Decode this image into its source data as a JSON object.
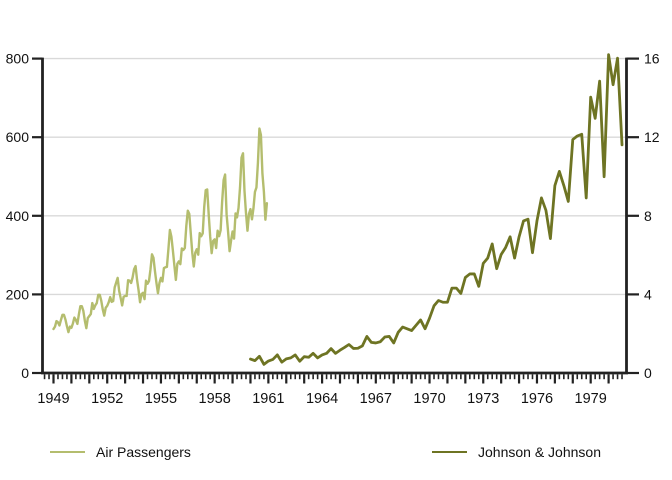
{
  "chart_data": {
    "type": "line",
    "title": "",
    "xlabel": "",
    "ylabel_left": "",
    "ylabel_right": "",
    "grid": "horizontal",
    "legend_position": "bottom",
    "background_color": "#ffffff",
    "gridline_color": "#d9d9d9",
    "spine_color": "#222222",
    "text_color": "#111111",
    "x_axis": {
      "labeled_tick_years": [
        1949,
        1952,
        1955,
        1958,
        1961,
        1964,
        1967,
        1970,
        1973,
        1976,
        1979
      ],
      "year_tick_start": 1949,
      "year_tick_end": 1980,
      "minor_tick_interval_years": 0.25,
      "domain_start": 1948.39,
      "domain_end": 1981.0
    },
    "y_left": {
      "ticks": [
        0,
        200,
        400,
        600,
        800
      ],
      "min": 0,
      "max": 800
    },
    "y_right": {
      "ticks": [
        0,
        4,
        8,
        12,
        16
      ],
      "min": 0,
      "max": 16
    },
    "series": [
      {
        "name": "Air Passengers",
        "axis": "left",
        "color": "#b4bd6e",
        "stroke_width": 2.4,
        "x_start": 1949.0,
        "x_step": 0.0833333,
        "values": [
          112,
          118,
          132,
          129,
          121,
          135,
          148,
          148,
          136,
          119,
          104,
          118,
          115,
          126,
          141,
          135,
          125,
          149,
          170,
          170,
          158,
          133,
          114,
          140,
          145,
          150,
          178,
          163,
          172,
          178,
          199,
          199,
          184,
          162,
          146,
          166,
          171,
          180,
          193,
          181,
          183,
          218,
          230,
          242,
          209,
          191,
          172,
          194,
          196,
          196,
          236,
          235,
          229,
          243,
          264,
          272,
          237,
          211,
          180,
          201,
          204,
          188,
          235,
          227,
          234,
          264,
          302,
          293,
          259,
          229,
          203,
          229,
          242,
          233,
          267,
          269,
          270,
          315,
          364,
          347,
          312,
          274,
          237,
          278,
          284,
          277,
          317,
          313,
          318,
          374,
          413,
          405,
          355,
          306,
          271,
          306,
          315,
          301,
          356,
          348,
          355,
          422,
          465,
          467,
          404,
          347,
          305,
          336,
          340,
          318,
          362,
          348,
          363,
          435,
          491,
          505,
          404,
          359,
          310,
          337,
          360,
          342,
          406,
          396,
          420,
          472,
          548,
          559,
          463,
          407,
          362,
          405,
          417,
          391,
          419,
          461,
          472,
          535,
          622,
          606,
          508,
          461,
          390,
          432
        ]
      },
      {
        "name": "Johnson & Johnson",
        "axis": "right",
        "color": "#6e7423",
        "stroke_width": 2.8,
        "x_start": 1960.0,
        "x_step": 0.25,
        "values": [
          0.71,
          0.63,
          0.85,
          0.44,
          0.61,
          0.69,
          0.92,
          0.55,
          0.72,
          0.77,
          0.92,
          0.6,
          0.83,
          0.8,
          1.0,
          0.77,
          0.92,
          1.0,
          1.24,
          1.0,
          1.16,
          1.3,
          1.45,
          1.25,
          1.26,
          1.38,
          1.86,
          1.56,
          1.53,
          1.59,
          1.83,
          1.86,
          1.53,
          2.07,
          2.34,
          2.25,
          2.16,
          2.43,
          2.7,
          2.25,
          2.79,
          3.42,
          3.69,
          3.6,
          3.6,
          4.32,
          4.32,
          4.05,
          4.86,
          5.04,
          5.04,
          4.41,
          5.58,
          5.85,
          6.57,
          5.31,
          6.03,
          6.39,
          6.93,
          5.85,
          6.93,
          7.74,
          7.83,
          6.12,
          7.74,
          8.91,
          8.28,
          6.84,
          9.54,
          10.26,
          9.54,
          8.73,
          11.88,
          12.06,
          12.15,
          8.91,
          14.04,
          12.96,
          14.85,
          9.99,
          16.2,
          14.67,
          16.02,
          11.61
        ]
      }
    ]
  }
}
